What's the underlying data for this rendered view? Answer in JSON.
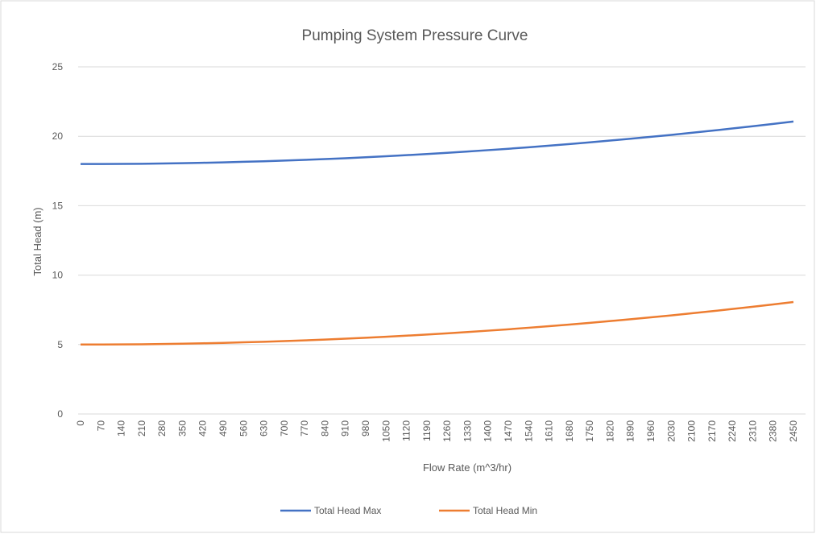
{
  "chart_data": {
    "type": "line",
    "title": "Pumping System Pressure Curve",
    "x_label": "Flow Rate (m^3/hr)",
    "y_label": "Total Head (m)",
    "categories": [
      "0",
      "70",
      "140",
      "210",
      "280",
      "350",
      "420",
      "490",
      "560",
      "630",
      "700",
      "770",
      "840",
      "910",
      "980",
      "1050",
      "1120",
      "1190",
      "1260",
      "1330",
      "1400",
      "1470",
      "1540",
      "1610",
      "1680",
      "1750",
      "1820",
      "1890",
      "1960",
      "2030",
      "2100",
      "2170",
      "2240",
      "2310",
      "2380",
      "2450"
    ],
    "series": [
      {
        "name": "Total Head Max",
        "color": "#4472c4",
        "values": [
          18,
          18,
          18.01,
          18.02,
          18.04,
          18.06,
          18.09,
          18.12,
          18.16,
          18.2,
          18.25,
          18.3,
          18.36,
          18.42,
          18.49,
          18.56,
          18.64,
          18.72,
          18.81,
          18.9,
          19,
          19.1,
          19.21,
          19.32,
          19.44,
          19.56,
          19.69,
          19.82,
          19.96,
          20.1,
          20.25,
          20.4,
          20.56,
          20.72,
          20.89,
          21.06
        ]
      },
      {
        "name": "Total Head Min",
        "color": "#ed7d31",
        "values": [
          5,
          5,
          5.01,
          5.02,
          5.04,
          5.06,
          5.09,
          5.12,
          5.16,
          5.2,
          5.25,
          5.3,
          5.36,
          5.42,
          5.49,
          5.56,
          5.64,
          5.72,
          5.81,
          5.9,
          6,
          6.1,
          6.21,
          6.32,
          6.44,
          6.56,
          6.69,
          6.82,
          6.96,
          7.1,
          7.25,
          7.4,
          7.56,
          7.72,
          7.89,
          8.06
        ]
      }
    ],
    "ylim": [
      0,
      25
    ],
    "yticks": [
      0,
      5,
      10,
      15,
      20,
      25
    ],
    "grid": true,
    "legend": "bottom"
  }
}
